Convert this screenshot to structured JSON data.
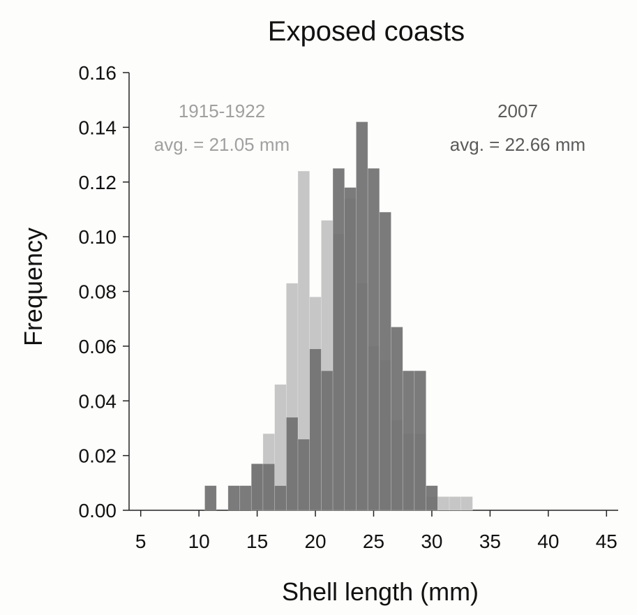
{
  "chart_data": {
    "type": "bar",
    "title": "Exposed coasts",
    "xlabel": "Shell length (mm)",
    "ylabel": "Frequency",
    "xlim": [
      4,
      46
    ],
    "ylim": [
      0,
      0.16
    ],
    "xticks": [
      "5",
      "10",
      "15",
      "20",
      "25",
      "30",
      "35",
      "40",
      "45"
    ],
    "yticks": [
      "0.00",
      "0.02",
      "0.04",
      "0.06",
      "0.08",
      "0.10",
      "0.12",
      "0.14",
      "0.16"
    ],
    "bin_width": 1,
    "grid": false,
    "series": [
      {
        "name": "1915-1922",
        "color": "#c6c6c6",
        "bins": [
          {
            "x": 11,
            "value": 0.0
          },
          {
            "x": 12,
            "value": 0.0
          },
          {
            "x": 13,
            "value": 0.0
          },
          {
            "x": 14,
            "value": 0.0
          },
          {
            "x": 15,
            "value": 0.017
          },
          {
            "x": 16,
            "value": 0.028
          },
          {
            "x": 17,
            "value": 0.046
          },
          {
            "x": 18,
            "value": 0.083
          },
          {
            "x": 19,
            "value": 0.124
          },
          {
            "x": 20,
            "value": 0.078
          },
          {
            "x": 21,
            "value": 0.106
          },
          {
            "x": 22,
            "value": 0.101
          },
          {
            "x": 23,
            "value": 0.114
          },
          {
            "x": 24,
            "value": 0.083
          },
          {
            "x": 25,
            "value": 0.06
          },
          {
            "x": 26,
            "value": 0.055
          },
          {
            "x": 27,
            "value": 0.033
          },
          {
            "x": 28,
            "value": 0.028
          },
          {
            "x": 29,
            "value": 0.028
          },
          {
            "x": 30,
            "value": 0.005
          },
          {
            "x": 31,
            "value": 0.005
          },
          {
            "x": 32,
            "value": 0.005
          },
          {
            "x": 33,
            "value": 0.005
          }
        ],
        "label": "1915-1922",
        "avg_label": "avg. = 21.05 mm"
      },
      {
        "name": "2007",
        "color": "#707070",
        "bins": [
          {
            "x": 11,
            "value": 0.009
          },
          {
            "x": 12,
            "value": 0.0
          },
          {
            "x": 13,
            "value": 0.009
          },
          {
            "x": 14,
            "value": 0.009
          },
          {
            "x": 15,
            "value": 0.017
          },
          {
            "x": 16,
            "value": 0.017
          },
          {
            "x": 17,
            "value": 0.009
          },
          {
            "x": 18,
            "value": 0.034
          },
          {
            "x": 19,
            "value": 0.026
          },
          {
            "x": 20,
            "value": 0.059
          },
          {
            "x": 21,
            "value": 0.051
          },
          {
            "x": 22,
            "value": 0.125
          },
          {
            "x": 23,
            "value": 0.118
          },
          {
            "x": 24,
            "value": 0.142
          },
          {
            "x": 25,
            "value": 0.125
          },
          {
            "x": 26,
            "value": 0.109
          },
          {
            "x": 27,
            "value": 0.067
          },
          {
            "x": 28,
            "value": 0.051
          },
          {
            "x": 29,
            "value": 0.051
          },
          {
            "x": 30,
            "value": 0.009
          },
          {
            "x": 31,
            "value": 0.0
          },
          {
            "x": 32,
            "value": 0.0
          },
          {
            "x": 33,
            "value": 0.0
          }
        ],
        "label": "2007",
        "avg_label": "avg. = 22.66 mm"
      }
    ]
  }
}
